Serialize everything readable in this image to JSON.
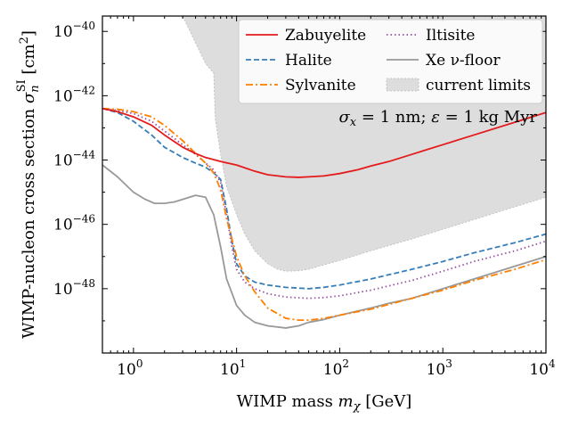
{
  "chart_data": {
    "type": "line",
    "xscale": "log",
    "yscale": "log",
    "xlim": [
      0.5,
      10000
    ],
    "ylim": [
      1e-50,
      3e-40
    ],
    "xlabel": "WIMP mass m_χ [GeV]",
    "ylabel": "WIMP-nucleon cross section σ_n^SI [cm²]",
    "xlabel_parts": {
      "main": "WIMP mass ",
      "symbol": "m",
      "sub": "χ",
      "unit": " [GeV]"
    },
    "ylabel_parts": {
      "main": "WIMP-nucleon cross section ",
      "symbol": "σ",
      "sub": "n",
      "sup": "SI",
      "unit": " [cm",
      "unit_sup": "2",
      "unit_close": "]"
    },
    "x_ticks": [
      {
        "value": 1,
        "base": "10",
        "exp": "0"
      },
      {
        "value": 10,
        "base": "10",
        "exp": "1"
      },
      {
        "value": 100,
        "base": "10",
        "exp": "2"
      },
      {
        "value": 1000,
        "base": "10",
        "exp": "3"
      },
      {
        "value": 10000,
        "base": "10",
        "exp": "4"
      }
    ],
    "y_ticks": [
      {
        "value": 1e-40,
        "base": "10",
        "exp": "−40"
      },
      {
        "value": 1e-42,
        "base": "10",
        "exp": "−42"
      },
      {
        "value": 1e-44,
        "base": "10",
        "exp": "−44"
      },
      {
        "value": 1e-46,
        "base": "10",
        "exp": "−46"
      },
      {
        "value": 1e-48,
        "base": "10",
        "exp": "−48"
      }
    ],
    "annotation": {
      "text": "σ_x = 1 nm; ε = 1 kg Myr",
      "parts": {
        "sym1": "σ",
        "sub1": "x",
        "eq1": " = 1 nm; ",
        "sym2": "ε",
        "eq2": " = 1 kg Myr"
      }
    },
    "legend_placement": "top-right",
    "series": [
      {
        "name": "Zabuyelite",
        "color": "#e41a1c",
        "style": "solid",
        "x": [
          0.5,
          0.7,
          1,
          1.5,
          2,
          3,
          4,
          5,
          7,
          10,
          15,
          20,
          30,
          40,
          50,
          70,
          100,
          150,
          200,
          300,
          500,
          700,
          1000,
          2000,
          5000,
          10000
        ],
        "y": [
          4e-43,
          3.2e-43,
          2.2e-43,
          1.2e-43,
          6e-44,
          2.5e-44,
          1.6e-44,
          1.2e-44,
          9e-45,
          7e-45,
          4.5e-45,
          3.5e-45,
          3e-45,
          2.9e-45,
          3e-45,
          3.2e-45,
          3.8e-45,
          5e-45,
          6.5e-45,
          9e-45,
          1.5e-44,
          2.1e-44,
          3e-44,
          6e-44,
          1.5e-43,
          3e-43
        ]
      },
      {
        "name": "Halite",
        "color": "#377eb8",
        "style": "dashed",
        "x": [
          0.5,
          0.7,
          1,
          1.5,
          2,
          3,
          4,
          5,
          6,
          7,
          8,
          9,
          10,
          12,
          15,
          20,
          30,
          50,
          70,
          100,
          200,
          500,
          1000,
          2000,
          5000,
          10000
        ],
        "y": [
          4e-43,
          3e-43,
          1.6e-43,
          6e-44,
          2.5e-44,
          1.2e-44,
          8e-45,
          6e-45,
          4e-45,
          2.5e-45,
          3e-46,
          3e-47,
          6e-48,
          2.5e-48,
          1.6e-48,
          1.3e-48,
          1.1e-48,
          1e-48,
          1.1e-48,
          1.3e-48,
          2e-48,
          4e-48,
          7e-48,
          1.3e-47,
          2.7e-47,
          5e-47
        ]
      },
      {
        "name": "Sylvanite",
        "color": "#ff7f00",
        "style": "dashdot",
        "x": [
          0.5,
          0.7,
          1,
          1.5,
          2,
          3,
          4,
          5,
          6,
          7,
          8,
          10,
          12,
          15,
          20,
          30,
          40,
          50,
          70,
          100,
          200,
          500,
          1000,
          2000,
          5000,
          10000
        ],
        "y": [
          4e-43,
          3.8e-43,
          3.2e-43,
          2.2e-43,
          1.2e-43,
          4e-44,
          1.6e-44,
          8e-45,
          4e-45,
          1.2e-45,
          1.5e-46,
          1e-47,
          2.5e-48,
          8e-49,
          2.5e-49,
          1.2e-49,
          1.05e-49,
          1.05e-49,
          1.2e-49,
          1.5e-49,
          2.3e-49,
          5e-49,
          9e-49,
          1.8e-48,
          4e-48,
          8e-48
        ]
      },
      {
        "name": "Iltisite",
        "color": "#984ea3",
        "style": "dotted",
        "x": [
          0.5,
          0.7,
          1,
          1.5,
          2,
          3,
          4,
          5,
          6,
          7,
          8,
          9,
          10,
          12,
          15,
          20,
          30,
          50,
          70,
          100,
          200,
          500,
          1000,
          2000,
          5000,
          10000
        ],
        "y": [
          4e-43,
          3.5e-43,
          2.8e-43,
          1.6e-43,
          8e-44,
          3e-44,
          1.5e-44,
          8e-45,
          5e-45,
          2e-45,
          2e-46,
          2e-47,
          4e-48,
          1.6e-48,
          1e-48,
          7e-49,
          5.5e-49,
          5e-49,
          5.3e-49,
          6e-49,
          9e-49,
          1.8e-48,
          3.5e-48,
          7e-48,
          1.5e-47,
          3e-47
        ]
      },
      {
        "name": "Xe ν-floor",
        "color": "#999999",
        "style": "solid",
        "x": [
          0.5,
          0.7,
          1,
          1.3,
          1.6,
          2,
          2.5,
          3,
          4,
          5,
          6,
          7,
          8,
          10,
          12,
          15,
          20,
          30,
          40,
          50,
          70,
          100,
          200,
          300,
          500,
          700,
          1000,
          2000,
          5000,
          10000
        ],
        "y": [
          7e-45,
          3e-45,
          1e-45,
          6e-46,
          4.5e-46,
          4.5e-46,
          5e-46,
          6e-46,
          8e-46,
          7e-46,
          2e-46,
          2e-47,
          2e-48,
          3e-49,
          1.5e-49,
          9e-50,
          7e-50,
          6e-50,
          7e-50,
          9e-50,
          1.1e-49,
          1.5e-49,
          2.5e-49,
          3.5e-49,
          5e-49,
          7e-49,
          1e-48,
          2e-48,
          5e-48,
          1e-47
        ]
      }
    ],
    "current_limits": {
      "name": "current limits",
      "color": "#dddddd",
      "x": [
        1.6,
        3,
        5,
        6,
        6.2,
        7,
        8,
        10,
        12,
        15,
        20,
        25,
        30,
        40,
        50,
        70,
        100,
        200,
        500,
        1000,
        2000,
        5000,
        10000
      ],
      "y": [
        3e-40,
        3e-40,
        1e-41,
        5e-42,
        2e-43,
        1.5e-44,
        1.5e-45,
        2e-46,
        5e-47,
        1.5e-47,
        6e-48,
        4e-48,
        3.5e-48,
        3.6e-48,
        4e-48,
        5.5e-48,
        7.5e-48,
        1.5e-47,
        3.5e-47,
        7e-47,
        1.4e-46,
        3.5e-46,
        7e-46
      ]
    },
    "legend": [
      {
        "label": "Zabuyelite",
        "series": 0
      },
      {
        "label": "Iltisite",
        "series": 3
      },
      {
        "label": "Halite",
        "series": 1
      },
      {
        "label": "Xe ν-floor",
        "series": 4
      },
      {
        "label": "Sylvanite",
        "series": 2
      },
      {
        "label": "current limits",
        "series": "fill"
      }
    ]
  }
}
